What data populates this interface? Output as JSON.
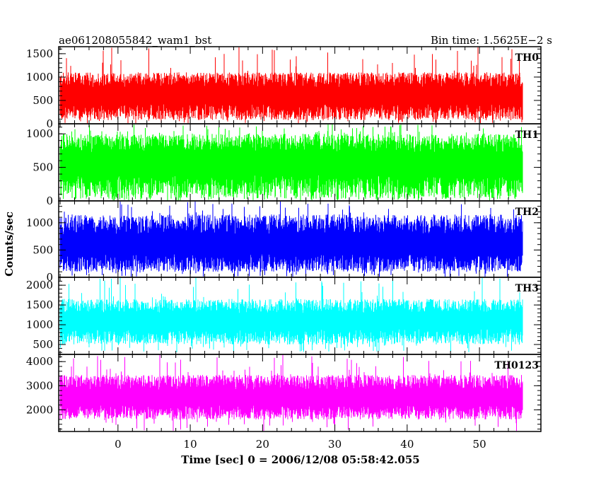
{
  "chart_data": {
    "type": "line",
    "title_left": "ae061208055842_wam1_bst",
    "title_right": "Bin time: 1.5625E−2 s",
    "xlabel": "Time [sec] 0 = 2006/12/08 05:58:42.055",
    "ylabel": "Counts/sec",
    "xlim": [
      -8.2,
      58.5
    ],
    "x_data_range": [
      -8,
      56
    ],
    "x_ticks": [
      0,
      10,
      20,
      30,
      40,
      50
    ],
    "x_tick_labels": [
      "0",
      "10",
      "20",
      "30",
      "40",
      "50"
    ],
    "panels": [
      {
        "name": "TH0",
        "color": "#ff0000",
        "ylim": [
          0,
          1650
        ],
        "y_ticks": [
          0,
          500,
          1000,
          1500
        ],
        "y_tick_labels": [
          "0",
          "500",
          "1000",
          "1500"
        ],
        "mean": 600,
        "typical_high": 1100,
        "typical_low": 80,
        "peak": 1650,
        "floor": 0
      },
      {
        "name": "TH1",
        "color": "#00ff00",
        "ylim": [
          0,
          1150
        ],
        "y_ticks": [
          0,
          500,
          1000
        ],
        "y_tick_labels": [
          "0",
          "500",
          "1000"
        ],
        "mean": 580,
        "typical_high": 1000,
        "typical_low": 30,
        "peak": 1150,
        "floor": 0
      },
      {
        "name": "TH2",
        "color": "#0000ff",
        "ylim": [
          0,
          1400
        ],
        "y_ticks": [
          0,
          500,
          1000
        ],
        "y_tick_labels": [
          "0",
          "500",
          "1000"
        ],
        "mean": 600,
        "typical_high": 1150,
        "typical_low": 100,
        "peak": 1400,
        "floor": 0
      },
      {
        "name": "TH3",
        "color": "#00ffff",
        "ylim": [
          250,
          2200
        ],
        "y_ticks": [
          500,
          1000,
          1500,
          2000
        ],
        "y_tick_labels": [
          "500",
          "1000",
          "1500",
          "2000"
        ],
        "mean": 1100,
        "typical_high": 1650,
        "typical_low": 500,
        "peak": 2200,
        "floor": 300
      },
      {
        "name": "TH0123",
        "color": "#ff00ff",
        "ylim": [
          1100,
          4300
        ],
        "y_ticks": [
          2000,
          3000,
          4000
        ],
        "y_tick_labels": [
          "2000",
          "3000",
          "4000"
        ],
        "mean": 2500,
        "typical_high": 3450,
        "typical_low": 1600,
        "peak": 4300,
        "floor": 1100
      }
    ]
  }
}
